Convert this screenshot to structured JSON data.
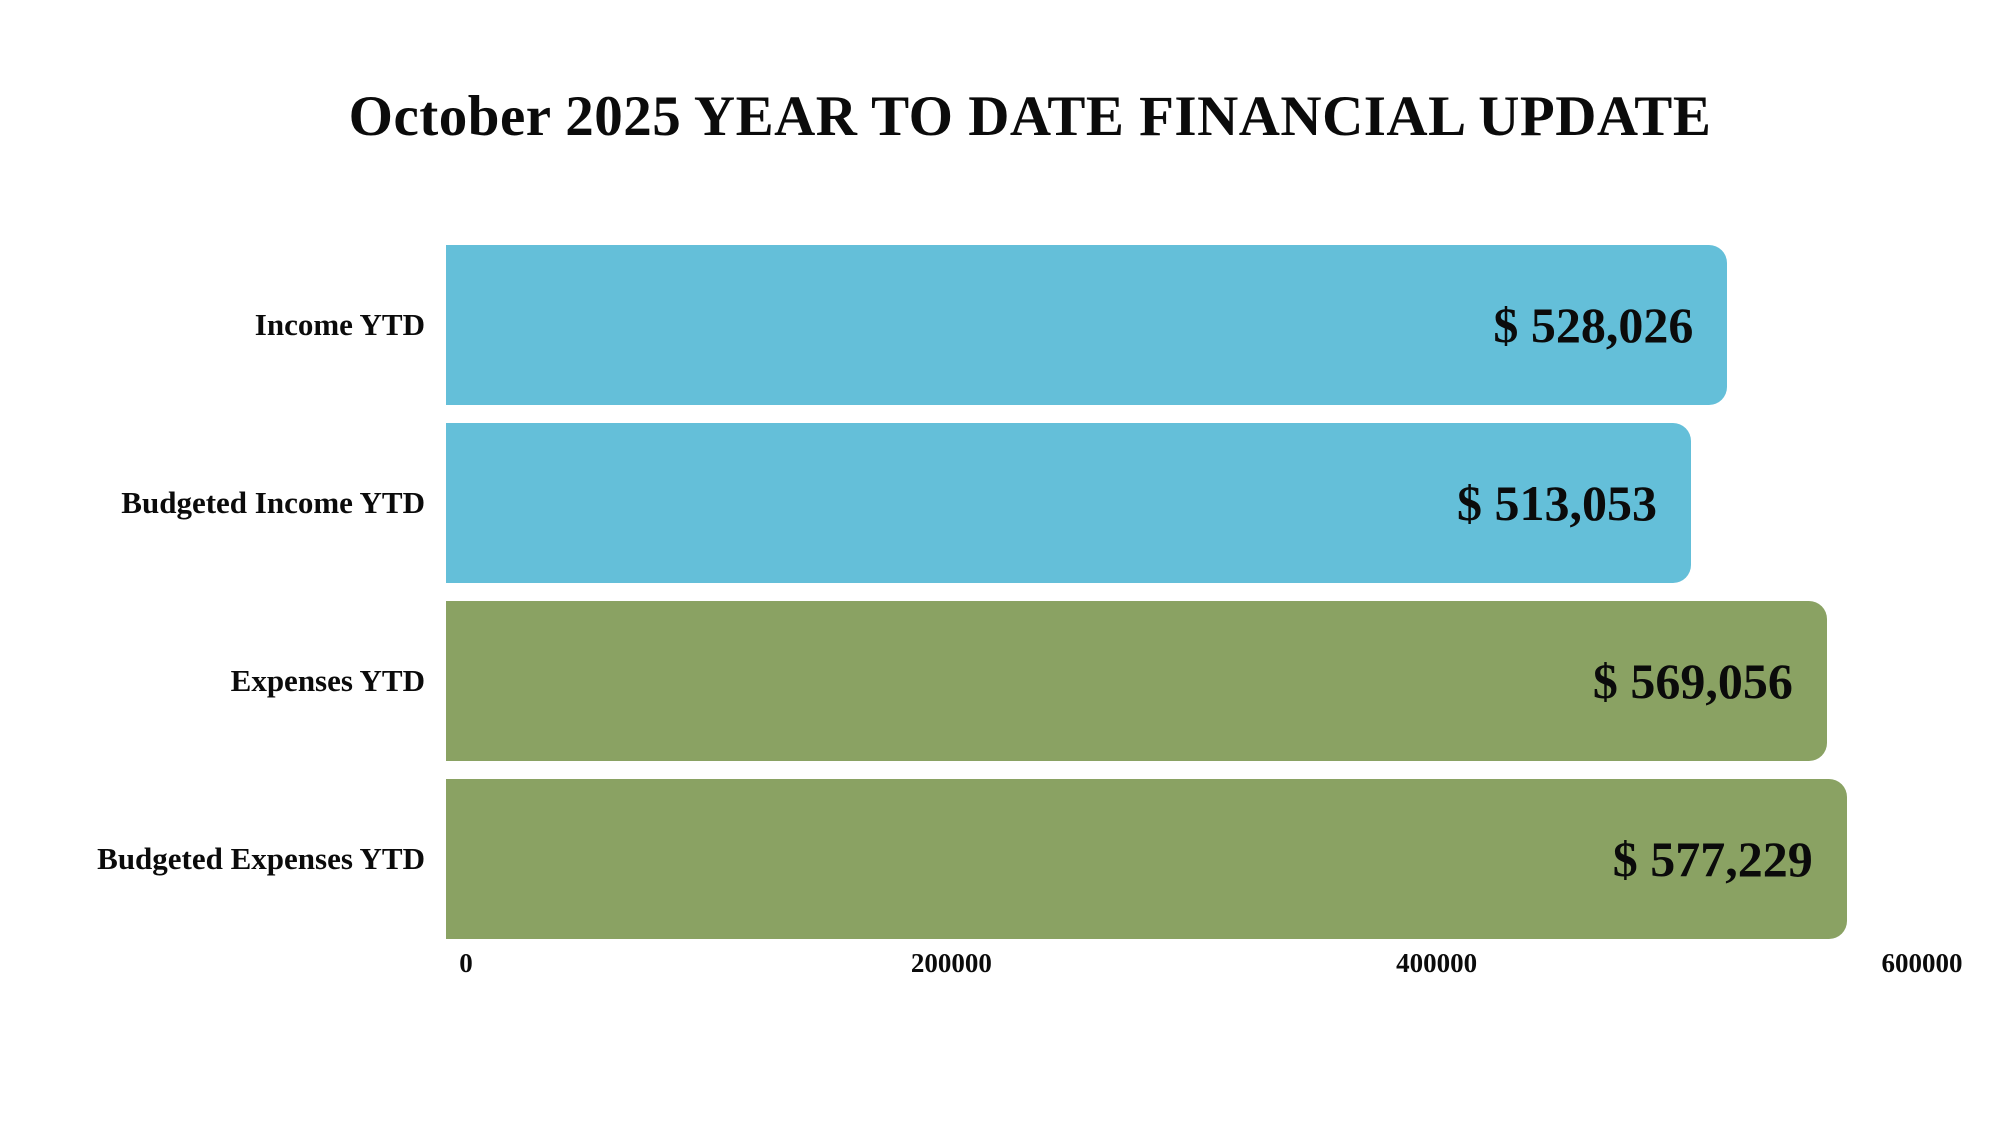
{
  "title": "October 2025 YEAR TO DATE FINANCIAL UPDATE",
  "colors": {
    "income_bar": "#64bfd9",
    "expense_bar": "#8aa263",
    "text": "#0b0b0b",
    "background": "#ffffff"
  },
  "chart_data": {
    "type": "bar",
    "orientation": "horizontal",
    "title": "October 2025 YEAR TO DATE FINANCIAL UPDATE",
    "categories": [
      "Income YTD",
      "Budgeted Income YTD",
      "Expenses YTD",
      "Budgeted Expenses YTD"
    ],
    "values": [
      528026,
      513053,
      569056,
      577229
    ],
    "value_labels": [
      "$ 528,026",
      "$ 513,053",
      "$ 569,056",
      "$ 577,229"
    ],
    "bar_colors": [
      "#64bfd9",
      "#64bfd9",
      "#8aa263",
      "#8aa263"
    ],
    "xlabel": "",
    "ylabel": "",
    "xlim": [
      0,
      600000
    ],
    "x_ticks": [
      0,
      200000,
      400000,
      600000
    ],
    "x_tick_labels": [
      "0",
      "200000",
      "400000",
      "600000"
    ],
    "tick_positions_pct": [
      0,
      33.3333,
      66.6667,
      100
    ],
    "grid": false,
    "legend": false,
    "value_label_position": "inside-right"
  }
}
